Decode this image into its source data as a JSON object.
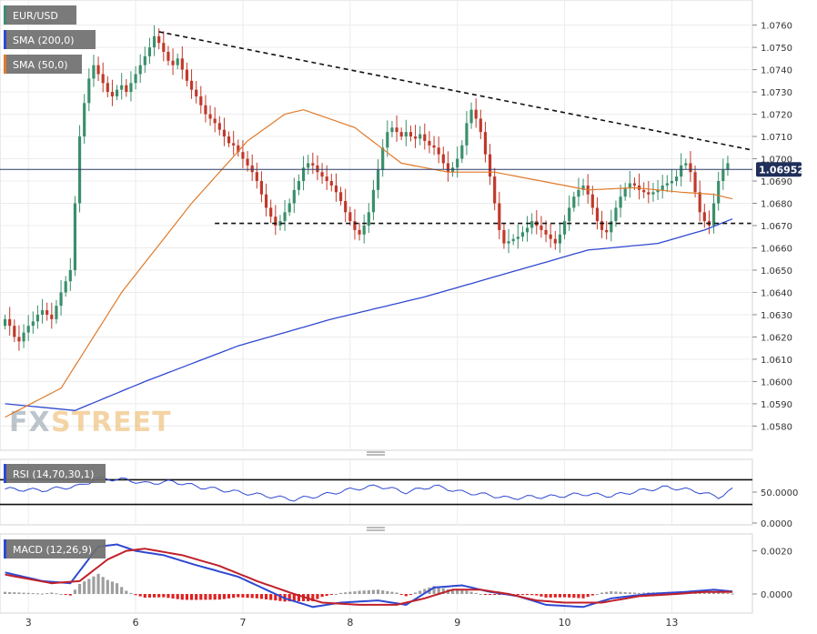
{
  "legend": {
    "symbol": "EUR/USD",
    "sma200": "SMA (200,0)",
    "sma50": "SMA (50,0)",
    "rsi": "RSI (14,70,30,1)",
    "macd": "MACD (12,26,9)"
  },
  "watermark": {
    "prefix": "FX",
    "suffix": "STREET"
  },
  "colors": {
    "candle_up": "#3a8f6c",
    "candle_down": "#c0392b",
    "sma200": "#2f49d1",
    "sma50": "#e07a2a",
    "rsi": "#2f49d1",
    "macd_line": "#2f49d1",
    "signal_line": "#c0202a",
    "hist_pos": "#9e9e9e",
    "hist_neg": "#e02020",
    "current_price_bg": "#1f2f5a",
    "trendline": "#111111"
  },
  "current_price": "1.06952",
  "chart_data": [
    {
      "type": "candlestick",
      "panel": "price",
      "ylim": [
        1.0572,
        1.0768
      ],
      "y_ticks": [
        "1.0580",
        "1.0590",
        "1.0600",
        "1.0610",
        "1.0620",
        "1.0630",
        "1.0640",
        "1.0650",
        "1.0660",
        "1.0670",
        "1.0680",
        "1.0690",
        "1.0700",
        "1.0710",
        "1.0720",
        "1.0730",
        "1.0740",
        "1.0750",
        "1.0760"
      ],
      "x_tick_labels": [
        "3",
        "6",
        "7",
        "8",
        "9",
        "10",
        "13"
      ],
      "x_tick_index": [
        5,
        28,
        51,
        74,
        97,
        120,
        143
      ],
      "candles_count": 160,
      "close_series": [
        1.0628,
        1.0625,
        1.062,
        1.0618,
        1.0622,
        1.0625,
        1.0627,
        1.063,
        1.0632,
        1.063,
        1.0628,
        1.0634,
        1.064,
        1.0645,
        1.065,
        1.068,
        1.071,
        1.0725,
        1.0736,
        1.0742,
        1.0738,
        1.0734,
        1.073,
        1.0728,
        1.0731,
        1.0733,
        1.073,
        1.0734,
        1.0738,
        1.0742,
        1.0746,
        1.075,
        1.0755,
        1.0752,
        1.0748,
        1.0744,
        1.0742,
        1.0745,
        1.074,
        1.0735,
        1.0731,
        1.0728,
        1.0724,
        1.072,
        1.0718,
        1.0716,
        1.0713,
        1.071,
        1.0707,
        1.0706,
        1.0703,
        1.07,
        1.0697,
        1.0694,
        1.069,
        1.0684,
        1.0678,
        1.0674,
        1.067,
        1.0672,
        1.0676,
        1.068,
        1.0686,
        1.069,
        1.0696,
        1.0698,
        1.0697,
        1.0694,
        1.0692,
        1.069,
        1.0688,
        1.0685,
        1.0681,
        1.0676,
        1.0672,
        1.0668,
        1.0666,
        1.067,
        1.0676,
        1.0686,
        1.0695,
        1.0705,
        1.0712,
        1.0714,
        1.0712,
        1.071,
        1.0712,
        1.071,
        1.0709,
        1.0711,
        1.0708,
        1.0706,
        1.0705,
        1.0702,
        1.0698,
        1.0694,
        1.0696,
        1.07,
        1.0706,
        1.0716,
        1.0722,
        1.0718,
        1.0712,
        1.0702,
        1.0692,
        1.068,
        1.0668,
        1.0662,
        1.0663,
        1.0664,
        1.0665,
        1.0667,
        1.0669,
        1.0672,
        1.067,
        1.0668,
        1.0666,
        1.0664,
        1.0662,
        1.0666,
        1.0672,
        1.0678,
        1.0683,
        1.0686,
        1.0688,
        1.0684,
        1.0678,
        1.0672,
        1.0668,
        1.0667,
        1.0672,
        1.0678,
        1.0683,
        1.0687,
        1.0689,
        1.0688,
        1.0686,
        1.0685,
        1.0684,
        1.0685,
        1.0686,
        1.0688,
        1.0689,
        1.069,
        1.0692,
        1.0697,
        1.0698,
        1.0694,
        1.0685,
        1.0676,
        1.0672,
        1.067,
        1.068,
        1.069,
        1.0695,
        1.0698,
        1.06952,
        1.06952,
        1.06952,
        1.06952
      ],
      "sma200_anchor": [
        [
          0,
          1.059
        ],
        [
          15,
          1.0587
        ],
        [
          30,
          1.06
        ],
        [
          50,
          1.0616
        ],
        [
          70,
          1.0628
        ],
        [
          90,
          1.0638
        ],
        [
          110,
          1.065
        ],
        [
          125,
          1.0659
        ],
        [
          140,
          1.0662
        ],
        [
          150,
          1.0668
        ],
        [
          156,
          1.0673
        ]
      ],
      "sma50_anchor": [
        [
          0,
          1.0584
        ],
        [
          12,
          1.0597
        ],
        [
          25,
          1.064
        ],
        [
          40,
          1.068
        ],
        [
          52,
          1.0708
        ],
        [
          60,
          1.072
        ],
        [
          64,
          1.0722
        ],
        [
          75,
          1.0714
        ],
        [
          85,
          1.0698
        ],
        [
          95,
          1.0694
        ],
        [
          105,
          1.0694
        ],
        [
          115,
          1.069
        ],
        [
          125,
          1.0686
        ],
        [
          135,
          1.0687
        ],
        [
          145,
          1.0685
        ],
        [
          152,
          1.0684
        ],
        [
          156,
          1.0682
        ]
      ],
      "resistance_line": [
        [
          33,
          1.0757
        ],
        [
          160,
          1.0704
        ]
      ],
      "support_line": [
        [
          45,
          1.0671
        ],
        [
          160,
          1.0671
        ]
      ]
    },
    {
      "type": "line",
      "panel": "rsi",
      "ylim": [
        0,
        100
      ],
      "y_tick_labels": [
        "50.0000",
        "0.0000"
      ],
      "y_ticks": [
        50,
        0
      ],
      "levels": [
        70,
        30
      ],
      "rsi_anchor": [
        [
          0,
          55
        ],
        [
          8,
          53
        ],
        [
          16,
          60
        ],
        [
          20,
          72
        ],
        [
          26,
          70
        ],
        [
          30,
          64
        ],
        [
          36,
          67
        ],
        [
          42,
          58
        ],
        [
          48,
          52
        ],
        [
          56,
          44
        ],
        [
          62,
          38
        ],
        [
          68,
          45
        ],
        [
          74,
          54
        ],
        [
          80,
          60
        ],
        [
          86,
          50
        ],
        [
          92,
          60
        ],
        [
          98,
          50
        ],
        [
          104,
          45
        ],
        [
          108,
          40
        ],
        [
          112,
          42
        ],
        [
          118,
          43
        ],
        [
          124,
          47
        ],
        [
          130,
          44
        ],
        [
          136,
          52
        ],
        [
          142,
          58
        ],
        [
          148,
          52
        ],
        [
          153,
          42
        ],
        [
          157,
          58
        ],
        [
          160,
          56
        ]
      ]
    },
    {
      "type": "macd",
      "panel": "macd",
      "ylim": [
        -0.0008,
        0.0027
      ],
      "y_tick_labels": [
        "0.0020",
        "0.0000"
      ],
      "y_ticks": [
        0.002,
        0.0
      ],
      "macd_anchor": [
        [
          0,
          0.001
        ],
        [
          8,
          0.0006
        ],
        [
          14,
          0.0005
        ],
        [
          20,
          0.0022
        ],
        [
          24,
          0.0023
        ],
        [
          28,
          0.002
        ],
        [
          34,
          0.0018
        ],
        [
          40,
          0.0014
        ],
        [
          50,
          0.0008
        ],
        [
          60,
          -0.0002
        ],
        [
          66,
          -0.0006
        ],
        [
          72,
          -0.0004
        ],
        [
          80,
          -0.0003
        ],
        [
          86,
          -0.0005
        ],
        [
          92,
          0.0003
        ],
        [
          98,
          0.0004
        ],
        [
          104,
          0.0001
        ],
        [
          110,
          -0.0001
        ],
        [
          116,
          -0.0005
        ],
        [
          124,
          -0.0006
        ],
        [
          130,
          -0.0002
        ],
        [
          138,
          0.0
        ],
        [
          146,
          0.0001
        ],
        [
          152,
          0.0002
        ],
        [
          157,
          0.0001
        ],
        [
          160,
          0.0001
        ]
      ],
      "signal_anchor": [
        [
          0,
          0.0009
        ],
        [
          10,
          0.0005
        ],
        [
          16,
          0.0006
        ],
        [
          22,
          0.0016
        ],
        [
          26,
          0.002
        ],
        [
          30,
          0.0021
        ],
        [
          38,
          0.0018
        ],
        [
          46,
          0.0013
        ],
        [
          54,
          0.0006
        ],
        [
          62,
          0.0
        ],
        [
          68,
          -0.0004
        ],
        [
          76,
          -0.0005
        ],
        [
          84,
          -0.0005
        ],
        [
          90,
          -0.0002
        ],
        [
          96,
          0.0002
        ],
        [
          102,
          0.0002
        ],
        [
          108,
          0.0
        ],
        [
          114,
          -0.0003
        ],
        [
          120,
          -0.0004
        ],
        [
          128,
          -0.0004
        ],
        [
          136,
          -0.0001
        ],
        [
          144,
          0.0
        ],
        [
          150,
          0.0001
        ],
        [
          156,
          0.0001
        ],
        [
          160,
          0.0001
        ]
      ]
    }
  ]
}
